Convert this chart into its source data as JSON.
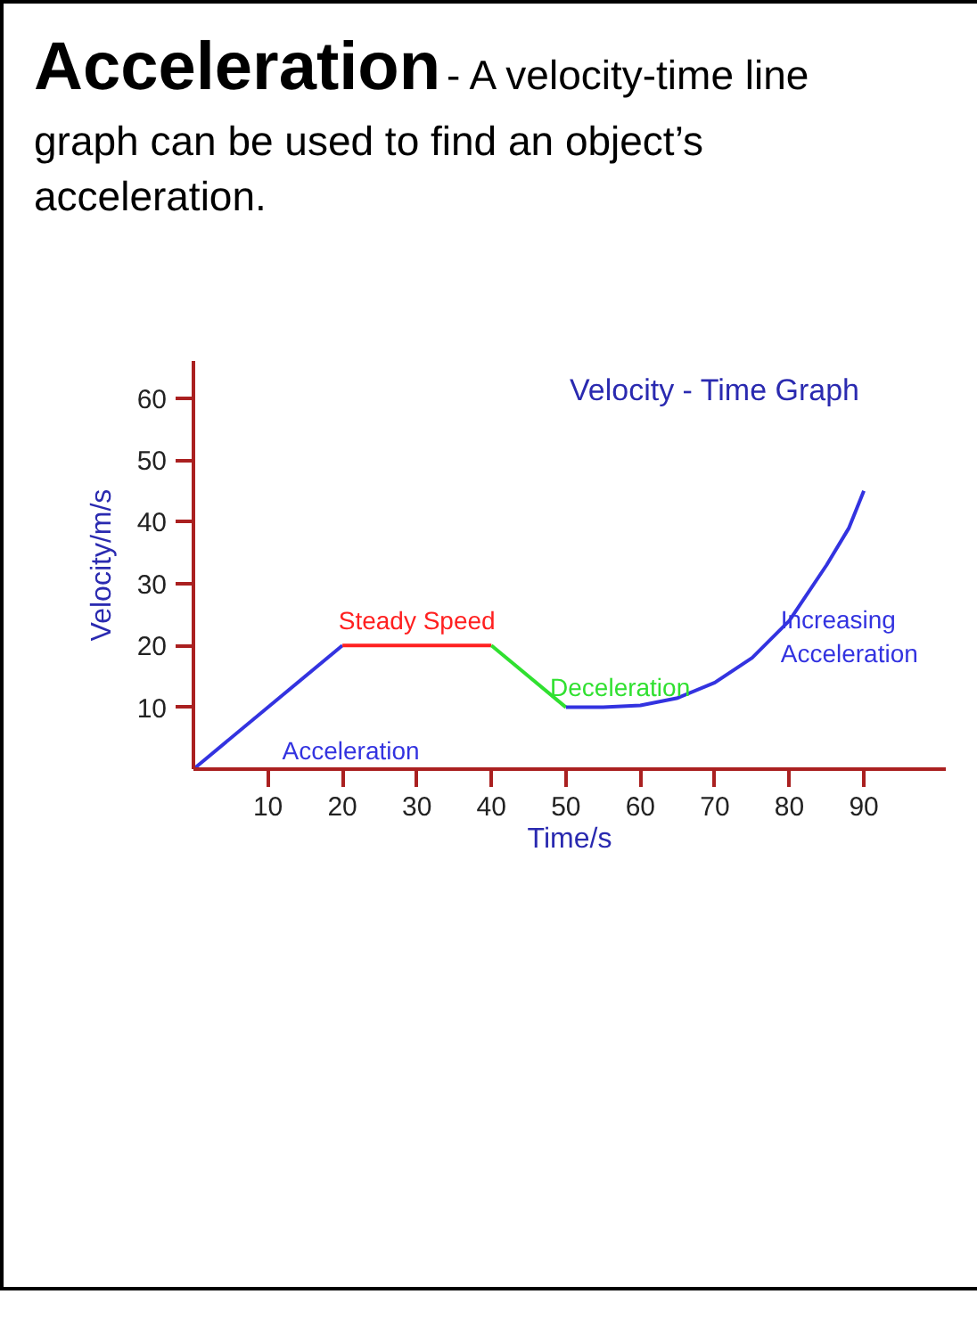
{
  "chart_data": {
    "type": "line",
    "title": "Velocity - Time Graph",
    "annotations": [
      "Acceleration",
      "- A velocity-time line graph can be used to find an object’s acceleration."
    ],
    "xlabel": "Time/s",
    "ylabel": "Velocity/m/s",
    "xlim": [
      0,
      101
    ],
    "ylim": [
      0,
      66
    ],
    "xticks": [
      10,
      20,
      30,
      40,
      50,
      60,
      70,
      80,
      90
    ],
    "yticks": [
      10,
      20,
      30,
      40,
      50,
      60
    ],
    "grid": false,
    "legend": false,
    "marker": "none",
    "line_style": "solid",
    "series": [
      {
        "name": "Acceleration",
        "color": "#3333e0",
        "x": [
          0,
          20
        ],
        "values": [
          0,
          20
        ]
      },
      {
        "name": "Steady Speed",
        "color": "#ff2020",
        "x": [
          20,
          40
        ],
        "values": [
          20,
          20
        ]
      },
      {
        "name": "Deceleration",
        "color": "#30e030",
        "x": [
          40,
          50
        ],
        "values": [
          20,
          10
        ]
      },
      {
        "name": "Increasing Acceleration",
        "color": "#3333e0",
        "x": [
          50,
          55,
          60,
          65,
          70,
          75,
          80,
          85,
          88,
          90
        ],
        "values": [
          10,
          10,
          10.3,
          11.5,
          14,
          18,
          24,
          33,
          39,
          45
        ]
      }
    ]
  }
}
